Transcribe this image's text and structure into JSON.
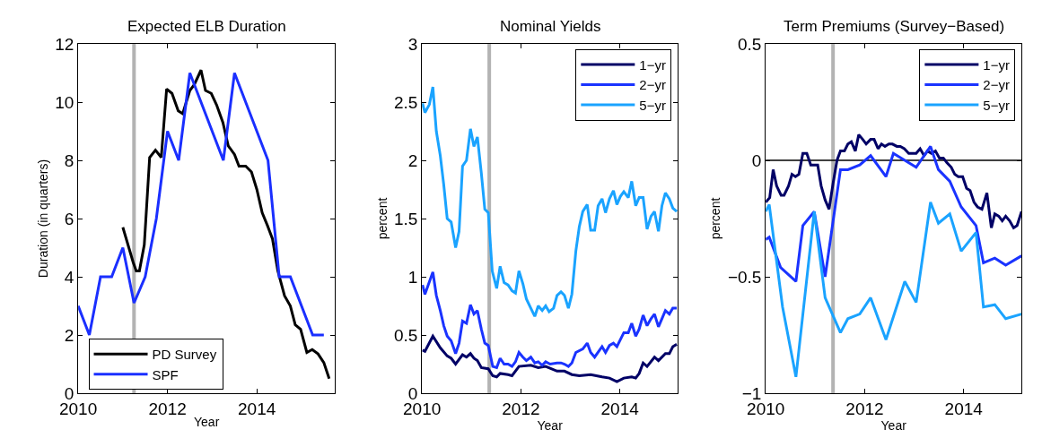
{
  "chart_data": [
    {
      "type": "line",
      "title": "Expected ELB Duration",
      "xlabel": "Year",
      "ylabel": "Duration (in quarters)",
      "xlim": [
        2010,
        2015.75
      ],
      "xticks": [
        2010,
        2012,
        2014
      ],
      "ylim": [
        0,
        12
      ],
      "yticks": [
        0,
        2,
        4,
        6,
        8,
        10,
        12
      ],
      "grid": false,
      "legend": "bottom left",
      "ref_lines": [
        {
          "axis": "x",
          "value": 2011.25,
          "color": "#b3b3b3"
        }
      ],
      "series": [
        {
          "name": "PD Survey",
          "color": "#000000",
          "x": [
            2011.0,
            2011.23,
            2011.3,
            2011.37,
            2011.48,
            2011.6,
            2011.73,
            2011.86,
            2011.98,
            2012.1,
            2012.24,
            2012.34,
            2012.5,
            2012.6,
            2012.75,
            2012.85,
            2012.98,
            2013.1,
            2013.24,
            2013.36,
            2013.5,
            2013.6,
            2013.75,
            2013.88,
            2014.0,
            2014.12,
            2014.24,
            2014.35,
            2014.47,
            2014.62,
            2014.75,
            2014.86,
            2014.98,
            2015.12,
            2015.24,
            2015.37,
            2015.5,
            2015.62
          ],
          "values": [
            5.7,
            4.5,
            4.2,
            4.2,
            5.1,
            8.1,
            8.35,
            8.1,
            10.45,
            10.3,
            9.7,
            9.6,
            10.4,
            10.6,
            11.1,
            10.4,
            10.3,
            9.9,
            9.3,
            8.5,
            8.2,
            7.8,
            7.8,
            7.6,
            7.0,
            6.2,
            5.75,
            5.3,
            4.2,
            3.35,
            3.0,
            2.35,
            2.2,
            1.4,
            1.5,
            1.35,
            1.05,
            0.5
          ]
        },
        {
          "name": "SPF",
          "color": "#1a2fff",
          "x": [
            2010.0,
            2010.25,
            2010.5,
            2010.75,
            2011.0,
            2011.25,
            2011.5,
            2011.75,
            2012.0,
            2012.25,
            2012.5,
            2013.25,
            2013.5,
            2014.25,
            2014.5,
            2014.75,
            2015.25,
            2015.5
          ],
          "values": [
            3,
            2,
            4,
            4,
            5,
            3.1,
            4,
            6,
            9,
            8,
            11,
            8,
            11,
            8,
            4,
            4,
            2,
            2
          ]
        }
      ]
    },
    {
      "type": "line",
      "title": "Nominal Yields",
      "xlabel": "Year",
      "ylabel": "percent",
      "xlim": [
        2010,
        2015.17
      ],
      "xticks": [
        2010,
        2012,
        2014
      ],
      "ylim": [
        0,
        3
      ],
      "yticks": [
        0,
        0.5,
        1,
        1.5,
        2,
        2.5,
        3
      ],
      "grid": false,
      "legend": "top right",
      "ref_lines": [
        {
          "axis": "x",
          "value": 2011.36,
          "color": "#b3b3b3"
        }
      ],
      "series": [
        {
          "name": "1−yr",
          "color": "#000066",
          "x": [
            2010.01,
            2010.06,
            2010.22,
            2010.37,
            2010.51,
            2010.59,
            2010.68,
            2010.82,
            2010.9,
            2010.98,
            2011.05,
            2011.12,
            2011.2,
            2011.34,
            2011.43,
            2011.51,
            2011.58,
            2011.74,
            2011.82,
            2011.96,
            2012.2,
            2012.35,
            2012.5,
            2012.73,
            2012.88,
            2013.03,
            2013.18,
            2013.41,
            2013.64,
            2013.79,
            2013.94,
            2014.08,
            2014.24,
            2014.32,
            2014.39,
            2014.47,
            2014.55,
            2014.7,
            2014.78,
            2014.92,
            2015.0,
            2015.07,
            2015.15
          ],
          "values": [
            0.37,
            0.36,
            0.49,
            0.39,
            0.32,
            0.3,
            0.25,
            0.33,
            0.31,
            0.34,
            0.3,
            0.28,
            0.22,
            0.21,
            0.15,
            0.14,
            0.17,
            0.16,
            0.15,
            0.23,
            0.24,
            0.22,
            0.23,
            0.19,
            0.19,
            0.16,
            0.15,
            0.16,
            0.14,
            0.13,
            0.1,
            0.13,
            0.14,
            0.13,
            0.17,
            0.26,
            0.23,
            0.31,
            0.28,
            0.34,
            0.34,
            0.4,
            0.42
          ]
        },
        {
          "name": "2−yr",
          "color": "#1a33ff",
          "x": [
            2010.01,
            2010.06,
            2010.22,
            2010.29,
            2010.37,
            2010.44,
            2010.51,
            2010.59,
            2010.68,
            2010.75,
            2010.82,
            2010.9,
            2010.98,
            2011.05,
            2011.12,
            2011.2,
            2011.27,
            2011.34,
            2011.43,
            2011.51,
            2011.58,
            2011.66,
            2011.74,
            2011.82,
            2011.89,
            2011.96,
            2012.04,
            2012.11,
            2012.2,
            2012.28,
            2012.35,
            2012.43,
            2012.5,
            2012.59,
            2012.73,
            2012.81,
            2012.88,
            2012.96,
            2013.03,
            2013.11,
            2013.25,
            2013.34,
            2013.41,
            2013.49,
            2013.64,
            2013.71,
            2013.79,
            2013.87,
            2013.94,
            2014.08,
            2014.17,
            2014.24,
            2014.32,
            2014.39,
            2014.47,
            2014.55,
            2014.63,
            2014.7,
            2014.78,
            2014.85,
            2014.92,
            2015.0,
            2015.07,
            2015.15
          ],
          "values": [
            0.93,
            0.85,
            1.04,
            0.84,
            0.71,
            0.58,
            0.49,
            0.45,
            0.34,
            0.43,
            0.62,
            0.6,
            0.76,
            0.68,
            0.71,
            0.55,
            0.43,
            0.41,
            0.23,
            0.22,
            0.3,
            0.25,
            0.25,
            0.23,
            0.27,
            0.35,
            0.31,
            0.28,
            0.31,
            0.26,
            0.27,
            0.24,
            0.27,
            0.25,
            0.26,
            0.26,
            0.25,
            0.23,
            0.26,
            0.35,
            0.38,
            0.43,
            0.35,
            0.31,
            0.4,
            0.35,
            0.41,
            0.43,
            0.4,
            0.52,
            0.52,
            0.6,
            0.49,
            0.55,
            0.67,
            0.58,
            0.64,
            0.68,
            0.57,
            0.64,
            0.71,
            0.68,
            0.73,
            0.73
          ]
        },
        {
          "name": "5−yr",
          "color": "#1aa3ff",
          "x": [
            2010.01,
            2010.06,
            2010.15,
            2010.22,
            2010.29,
            2010.37,
            2010.44,
            2010.51,
            2010.59,
            2010.68,
            2010.75,
            2010.82,
            2010.9,
            2010.98,
            2011.05,
            2011.12,
            2011.2,
            2011.27,
            2011.34,
            2011.42,
            2011.51,
            2011.58,
            2011.66,
            2011.74,
            2011.82,
            2011.89,
            2011.96,
            2012.04,
            2012.11,
            2012.2,
            2012.28,
            2012.35,
            2012.43,
            2012.5,
            2012.57,
            2012.66,
            2012.73,
            2012.81,
            2012.88,
            2012.96,
            2013.03,
            2013.11,
            2013.18,
            2013.25,
            2013.34,
            2013.41,
            2013.49,
            2013.56,
            2013.64,
            2013.71,
            2013.79,
            2013.87,
            2013.94,
            2014.01,
            2014.08,
            2014.17,
            2014.24,
            2014.32,
            2014.39,
            2014.47,
            2014.55,
            2014.63,
            2014.7,
            2014.78,
            2014.85,
            2014.92,
            2015.0,
            2015.07,
            2015.15
          ],
          "values": [
            2.49,
            2.41,
            2.48,
            2.63,
            2.25,
            2.04,
            1.79,
            1.5,
            1.47,
            1.25,
            1.39,
            1.95,
            2.0,
            2.27,
            2.12,
            2.2,
            1.89,
            1.58,
            1.55,
            1.05,
            0.9,
            1.09,
            0.95,
            0.93,
            0.88,
            0.86,
            1.05,
            0.94,
            0.81,
            0.73,
            0.66,
            0.75,
            0.71,
            0.75,
            0.7,
            0.73,
            0.84,
            0.87,
            0.84,
            0.73,
            0.85,
            1.22,
            1.43,
            1.56,
            1.62,
            1.4,
            1.4,
            1.61,
            1.67,
            1.55,
            1.67,
            1.74,
            1.62,
            1.69,
            1.73,
            1.68,
            1.82,
            1.61,
            1.68,
            1.68,
            1.41,
            1.52,
            1.56,
            1.39,
            1.61,
            1.72,
            1.67,
            1.59,
            1.56
          ]
        }
      ]
    },
    {
      "type": "line",
      "title": "Term Premiums (Survey−Based)",
      "xlabel": "Year",
      "ylabel": "percent",
      "xlim": [
        2010,
        2015.17
      ],
      "xticks": [
        2010,
        2012,
        2014
      ],
      "ylim": [
        -1,
        0.5
      ],
      "yticks": [
        -1,
        -0.5,
        0,
        0.5
      ],
      "grid": false,
      "legend": "top right",
      "ref_lines": [
        {
          "axis": "x",
          "value": 2011.36,
          "color": "#b3b3b3"
        },
        {
          "axis": "y",
          "value": 0,
          "color": "#000000"
        }
      ],
      "series": [
        {
          "name": "1−yr",
          "color": "#000066",
          "x": [
            2010.0,
            2010.08,
            2010.15,
            2010.22,
            2010.31,
            2010.37,
            2010.46,
            2010.53,
            2010.6,
            2010.67,
            2010.75,
            2010.83,
            2010.91,
            2010.98,
            2011.05,
            2011.12,
            2011.2,
            2011.28,
            2011.36,
            2011.44,
            2011.51,
            2011.59,
            2011.66,
            2011.73,
            2011.81,
            2011.88,
            2011.96,
            2012.03,
            2012.12,
            2012.19,
            2012.27,
            2012.34,
            2012.41,
            2012.49,
            2012.56,
            2012.65,
            2012.72,
            2012.8,
            2012.89,
            2012.98,
            2013.04,
            2013.12,
            2013.2,
            2013.27,
            2013.35,
            2013.43,
            2013.51,
            2013.59,
            2013.66,
            2013.75,
            2013.82,
            2013.89,
            2013.98,
            2014.06,
            2014.13,
            2014.21,
            2014.28,
            2014.37,
            2014.47,
            2014.56,
            2014.63,
            2014.71,
            2014.78,
            2014.85,
            2014.93,
            2015.01,
            2015.08,
            2015.17
          ],
          "values": [
            -0.18,
            -0.16,
            -0.04,
            -0.11,
            -0.15,
            -0.15,
            -0.11,
            -0.06,
            -0.07,
            -0.06,
            0.03,
            0.03,
            -0.02,
            -0.02,
            -0.02,
            -0.11,
            -0.17,
            -0.21,
            -0.1,
            0.0,
            0.04,
            0.04,
            0.07,
            0.08,
            0.04,
            0.11,
            0.09,
            0.07,
            0.09,
            0.09,
            0.05,
            0.07,
            0.06,
            0.07,
            0.07,
            0.06,
            0.06,
            0.05,
            0.03,
            0.03,
            0.03,
            0.05,
            0.02,
            0.04,
            0.03,
            0.04,
            0.01,
            0.01,
            -0.01,
            -0.03,
            -0.06,
            -0.07,
            -0.07,
            -0.12,
            -0.13,
            -0.18,
            -0.2,
            -0.21,
            -0.14,
            -0.29,
            -0.23,
            -0.24,
            -0.26,
            -0.24,
            -0.26,
            -0.29,
            -0.28,
            -0.22
          ]
        },
        {
          "name": "2−yr",
          "color": "#1a33ff",
          "x": [
            2010.0,
            2010.07,
            2010.3,
            2010.61,
            2010.75,
            2010.98,
            2011.2,
            2011.51,
            2011.66,
            2011.9,
            2012.12,
            2012.43,
            2012.58,
            2013.04,
            2013.33,
            2013.49,
            2013.72,
            2013.95,
            2014.25,
            2014.4,
            2014.63,
            2014.85,
            2015.17
          ],
          "values": [
            -0.34,
            -0.33,
            -0.46,
            -0.52,
            -0.28,
            -0.22,
            -0.5,
            -0.04,
            -0.04,
            -0.02,
            0.02,
            -0.07,
            0.03,
            -0.03,
            0.06,
            -0.04,
            -0.09,
            -0.2,
            -0.28,
            -0.44,
            -0.42,
            -0.45,
            -0.41
          ]
        },
        {
          "name": "5−yr",
          "color": "#1aa3ff",
          "x": [
            2010.0,
            2010.07,
            2010.34,
            2010.61,
            2010.98,
            2011.2,
            2011.51,
            2011.66,
            2011.9,
            2012.12,
            2012.43,
            2012.81,
            2013.04,
            2013.33,
            2013.49,
            2013.72,
            2013.95,
            2014.25,
            2014.4,
            2014.63,
            2014.85,
            2015.17
          ],
          "values": [
            -0.22,
            -0.19,
            -0.63,
            -0.93,
            -0.22,
            -0.59,
            -0.74,
            -0.68,
            -0.66,
            -0.59,
            -0.77,
            -0.52,
            -0.61,
            -0.18,
            -0.27,
            -0.23,
            -0.39,
            -0.31,
            -0.63,
            -0.62,
            -0.68,
            -0.66
          ]
        }
      ]
    }
  ]
}
